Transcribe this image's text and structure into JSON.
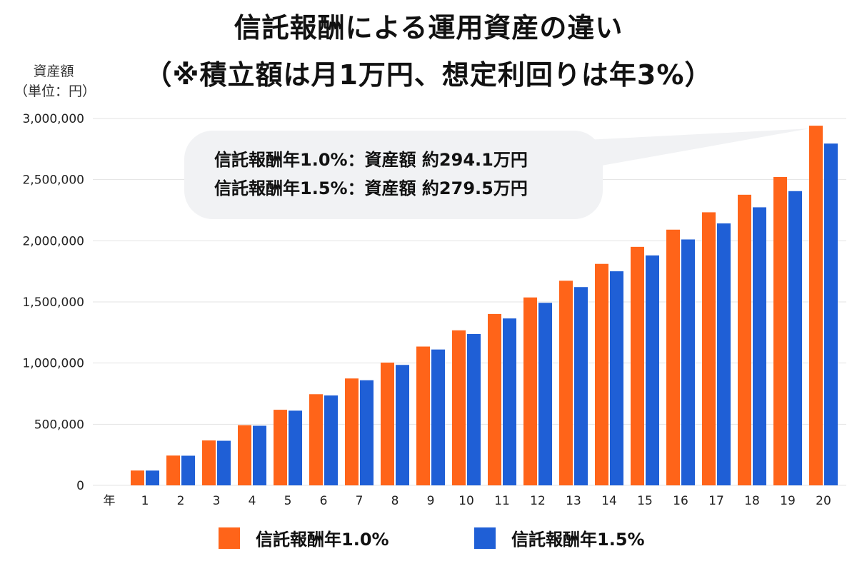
{
  "title": {
    "line1": "信託報酬による運用資産の違い",
    "line2": "（※積立額は月1万円、想定利回りは年3%）"
  },
  "y_axis_label": {
    "line1": "資産額",
    "line2": "（単位：円）"
  },
  "callout": {
    "line1": "信託報酬年1.0%：資産額 約294.1万円",
    "line2": "信託報酬年1.5%：資産額 約279.5万円"
  },
  "colors": {
    "series1": "#ff6419",
    "series2": "#1f5fd6",
    "grid": "#e3e3e3",
    "callout_bg": "#f1f2f4"
  },
  "chart_data": {
    "type": "bar",
    "x_axis_unit_label": "年",
    "categories": [
      "1",
      "2",
      "3",
      "4",
      "5",
      "6",
      "7",
      "8",
      "9",
      "10",
      "11",
      "12",
      "13",
      "14",
      "15",
      "16",
      "17",
      "18",
      "19",
      "20"
    ],
    "series": [
      {
        "name": "信託報酬年1.0%",
        "color": "#ff6419",
        "values": [
          121200,
          243600,
          367200,
          492000,
          618100,
          745400,
          874000,
          1003900,
          1135100,
          1267600,
          1401400,
          1536600,
          1673100,
          1811000,
          1950300,
          2090900,
          2232900,
          2376400,
          2521300,
          2941000
        ]
      },
      {
        "name": "信託報酬年1.5%",
        "color": "#1f5fd6",
        "values": [
          120900,
          242400,
          364600,
          487400,
          610800,
          734900,
          859500,
          984900,
          1110900,
          1237500,
          1364800,
          1492800,
          1621300,
          1750500,
          1880300,
          2010800,
          2141900,
          2273700,
          2406100,
          2795000
        ]
      }
    ],
    "ylim": [
      0,
      3000000
    ],
    "y_ticks": [
      "0",
      "500,000",
      "1,000,000",
      "1,500,000",
      "2,000,000",
      "2,500,000",
      "3,000,000"
    ],
    "y_tick_values": [
      0,
      500000,
      1000000,
      1500000,
      2000000,
      2500000,
      3000000
    ],
    "grid": true,
    "legend_position": "bottom"
  }
}
